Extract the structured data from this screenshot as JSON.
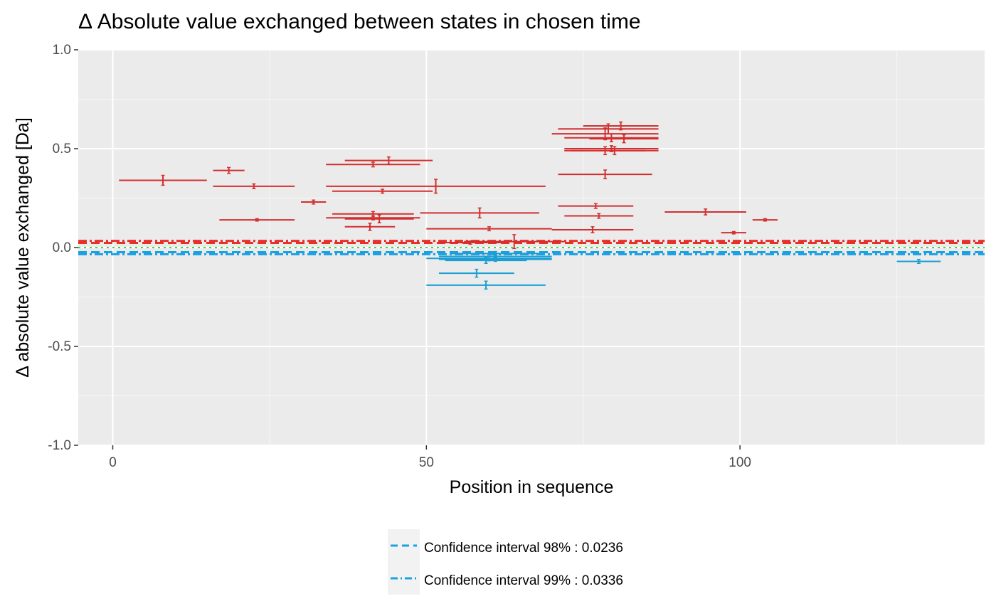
{
  "chart_data": {
    "type": "scatter",
    "title": "Δ Absolute value exchanged between states in chosen time",
    "xlabel": "Position in sequence",
    "ylabel": "Δ absolute value exchanged [Da]",
    "xlim": [
      -5.5,
      139
    ],
    "ylim": [
      -1.0,
      1.0
    ],
    "x_ticks": [
      0,
      50,
      100
    ],
    "y_ticks": [
      -1.0,
      -0.5,
      0.0,
      0.5,
      1.0
    ],
    "y_tick_labels": [
      "-1.0",
      "-0.5",
      "0.0",
      "0.5",
      "1.0"
    ],
    "grid": true,
    "legend_position": "bottom",
    "colors": {
      "positive": "#d32f2f",
      "negative": "#1a9ed4",
      "ci_positive": "#e8302a",
      "ci_negative": "#1ba1e2",
      "zero_line": "#33dd33",
      "panel": "#ebebeb",
      "grid": "#ffffff"
    },
    "confidence_intervals": [
      {
        "label": "Confidence interval 98% : 0.0236",
        "value": 0.0236,
        "linetype": "dashed"
      },
      {
        "label": "Confidence interval 99% : 0.0336",
        "value": 0.0336,
        "linetype": "dotdash"
      }
    ],
    "peptides": [
      {
        "start": 1,
        "end": 15,
        "value": 0.34,
        "err": 0.025
      },
      {
        "start": 16,
        "end": 21,
        "value": 0.39,
        "err": 0.015
      },
      {
        "start": 16,
        "end": 29,
        "value": 0.31,
        "err": 0.012
      },
      {
        "start": 17,
        "end": 29,
        "value": 0.14,
        "err": 0.006
      },
      {
        "start": 30,
        "end": 34,
        "value": 0.23,
        "err": 0.01
      },
      {
        "start": 34,
        "end": 49,
        "value": 0.42,
        "err": 0.012
      },
      {
        "start": 34,
        "end": 69,
        "value": 0.31,
        "err": 0.035
      },
      {
        "start": 34,
        "end": 49,
        "value": 0.15,
        "err": 0.01
      },
      {
        "start": 35,
        "end": 51,
        "value": 0.285,
        "err": 0.01
      },
      {
        "start": 35,
        "end": 48,
        "value": 0.17,
        "err": 0.012
      },
      {
        "start": 37,
        "end": 51,
        "value": 0.44,
        "err": 0.018
      },
      {
        "start": 37,
        "end": 48,
        "value": 0.145,
        "err": 0.02
      },
      {
        "start": 37,
        "end": 45,
        "value": 0.105,
        "err": 0.018
      },
      {
        "start": 49,
        "end": 68,
        "value": 0.175,
        "err": 0.025
      },
      {
        "start": 50,
        "end": 70,
        "value": 0.095,
        "err": 0.01
      },
      {
        "start": 52,
        "end": 62,
        "value": 0.025,
        "err": 0.008
      },
      {
        "start": 56,
        "end": 72,
        "value": 0.03,
        "err": 0.035
      },
      {
        "start": 70,
        "end": 87,
        "value": 0.575,
        "err": 0.03
      },
      {
        "start": 71,
        "end": 87,
        "value": 0.6,
        "err": 0.025
      },
      {
        "start": 75,
        "end": 87,
        "value": 0.615,
        "err": 0.02
      },
      {
        "start": 72,
        "end": 87,
        "value": 0.555,
        "err": 0.02
      },
      {
        "start": 76,
        "end": 87,
        "value": 0.55,
        "err": 0.02
      },
      {
        "start": 72,
        "end": 87,
        "value": 0.5,
        "err": 0.015
      },
      {
        "start": 73,
        "end": 87,
        "value": 0.49,
        "err": 0.02
      },
      {
        "start": 72,
        "end": 85,
        "value": 0.49,
        "err": 0.02
      },
      {
        "start": 71,
        "end": 86,
        "value": 0.37,
        "err": 0.022
      },
      {
        "start": 71,
        "end": 83,
        "value": 0.21,
        "err": 0.012
      },
      {
        "start": 72,
        "end": 83,
        "value": 0.16,
        "err": 0.012
      },
      {
        "start": 70,
        "end": 83,
        "value": 0.09,
        "err": 0.015
      },
      {
        "start": 88,
        "end": 101,
        "value": 0.18,
        "err": 0.015
      },
      {
        "start": 97,
        "end": 101,
        "value": 0.075,
        "err": 0.006
      },
      {
        "start": 102,
        "end": 106,
        "value": 0.14,
        "err": 0.006
      },
      {
        "start": 50,
        "end": 70,
        "value": -0.055,
        "err": 0.012
      },
      {
        "start": 52,
        "end": 70,
        "value": -0.045,
        "err": 0.01
      },
      {
        "start": 53,
        "end": 66,
        "value": -0.065,
        "err": 0.015
      },
      {
        "start": 54,
        "end": 68,
        "value": -0.03,
        "err": 0.01
      },
      {
        "start": 52,
        "end": 70,
        "value": -0.06,
        "err": 0.01
      },
      {
        "start": 52,
        "end": 64,
        "value": -0.13,
        "err": 0.02
      },
      {
        "start": 50,
        "end": 69,
        "value": -0.19,
        "err": 0.02
      },
      {
        "start": 125,
        "end": 132,
        "value": -0.07,
        "err": 0.01
      }
    ]
  },
  "legend": {
    "items": [
      {
        "label": "Confidence interval 98% : 0.0236"
      },
      {
        "label": "Confidence interval 99% : 0.0336"
      }
    ]
  }
}
